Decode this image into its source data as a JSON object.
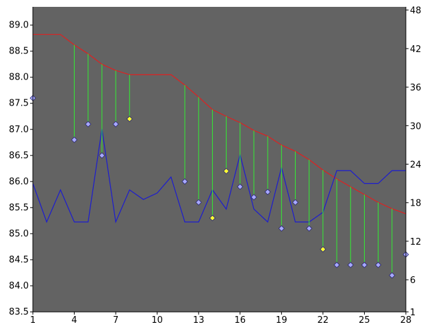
{
  "chart_data": {
    "type": "line",
    "title": "",
    "xlabel": "",
    "ylabel": "",
    "y2label": "",
    "grid": false,
    "legend": "none",
    "xlim": [
      1,
      28
    ],
    "ylim": [
      83.5,
      89.35
    ],
    "y2lim": [
      1,
      48.5
    ],
    "x_tick_labels": [
      "1",
      "4",
      "7",
      "10",
      "13",
      "16",
      "19",
      "22",
      "25",
      "28"
    ],
    "y_tick_labels": [
      "83.5",
      "84.0",
      "84.5",
      "85.0",
      "85.5",
      "86.0",
      "86.5",
      "87.0",
      "87.5",
      "88.0",
      "88.5",
      "89.0"
    ],
    "y2_tick_labels": [
      "1",
      "6",
      "12",
      "18",
      "24",
      "30",
      "36",
      "42",
      "48"
    ],
    "x": [
      1,
      2,
      3,
      4,
      5,
      6,
      7,
      8,
      9,
      10,
      11,
      12,
      13,
      14,
      15,
      16,
      17,
      18,
      19,
      20,
      21,
      22,
      23,
      24,
      25,
      26,
      27,
      28
    ],
    "series": [
      {
        "axis": "left",
        "color": "#e02020",
        "values": [
          88.82,
          88.82,
          88.82,
          88.62,
          88.45,
          88.25,
          88.13,
          88.05,
          88.05,
          88.05,
          88.05,
          87.85,
          87.62,
          87.38,
          87.25,
          87.13,
          86.98,
          86.87,
          86.7,
          86.58,
          86.42,
          86.22,
          86.05,
          85.9,
          85.75,
          85.6,
          85.48,
          85.38
        ]
      },
      {
        "axis": "right",
        "color": "#1c1cd0",
        "values": [
          21,
          15,
          20,
          15,
          15,
          29.5,
          15,
          20,
          18.5,
          19.5,
          22,
          15,
          15,
          20,
          17,
          25.5,
          17,
          15,
          23.5,
          15,
          15,
          16.5,
          23,
          23,
          21,
          21,
          23,
          23
        ]
      },
      {
        "axis": "left",
        "marker": "diamond",
        "x": [
          1,
          4,
          5,
          6,
          7,
          8,
          12,
          13,
          14,
          15,
          16,
          17,
          18,
          19,
          20,
          21,
          22,
          23,
          24,
          25,
          26,
          27,
          28
        ],
        "values": [
          87.6,
          86.8,
          87.1,
          86.5,
          87.1,
          87.2,
          86.0,
          85.6,
          85.3,
          86.2,
          85.9,
          85.7,
          85.8,
          85.1,
          85.6,
          85.1,
          84.7,
          84.4,
          84.4,
          84.4,
          84.4,
          84.2,
          84.6
        ],
        "colors": [
          "#a8a8ff",
          "#a8a8ff",
          "#a8a8ff",
          "#a8a8ff",
          "#a8a8ff",
          "#ffff33",
          "#a8a8ff",
          "#a8a8ff",
          "#ffff33",
          "#ffff33",
          "#a8a8ff",
          "#a8a8ff",
          "#a8a8ff",
          "#a8a8ff",
          "#a8a8ff",
          "#a8a8ff",
          "#ffff33",
          "#a8a8ff",
          "#a8a8ff",
          "#a8a8ff",
          "#a8a8ff",
          "#a8a8ff",
          "#a8a8ff"
        ]
      }
    ],
    "drop_lines": {
      "color": "#33ee33",
      "from": "red line",
      "to": "diamond markers"
    },
    "plot_background": "#636363"
  }
}
